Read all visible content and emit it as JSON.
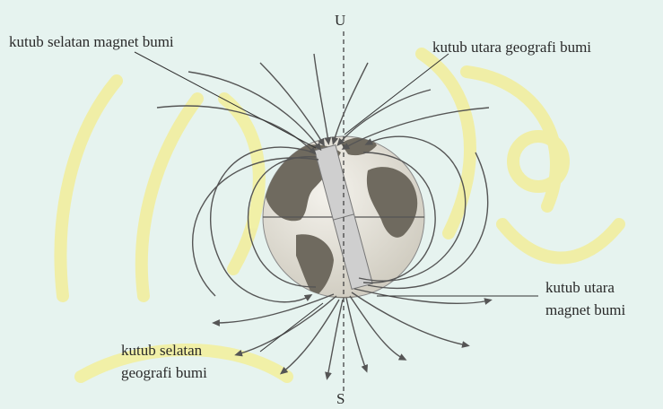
{
  "diagram": {
    "axis_top_label": "U",
    "axis_bottom_label": "S",
    "labels": {
      "south_magnetic_pole": "kutub selatan magnet bumi",
      "north_geographic_pole": "kutub utara geografi bumi",
      "north_magnetic_pole_line1": "kutub utara",
      "north_magnetic_pole_line2": "magnet bumi",
      "south_geographic_pole_line1": "kutub selatan",
      "south_geographic_pole_line2": "geografi bumi"
    },
    "colors": {
      "background": "#e6f3ef",
      "watermark": "#f2ee9a",
      "field_lines": "#555555",
      "ocean": "#e9e6de",
      "land": "#6f6a5f",
      "magnet": "#cfcfcf",
      "text": "#2a2a2a"
    }
  }
}
